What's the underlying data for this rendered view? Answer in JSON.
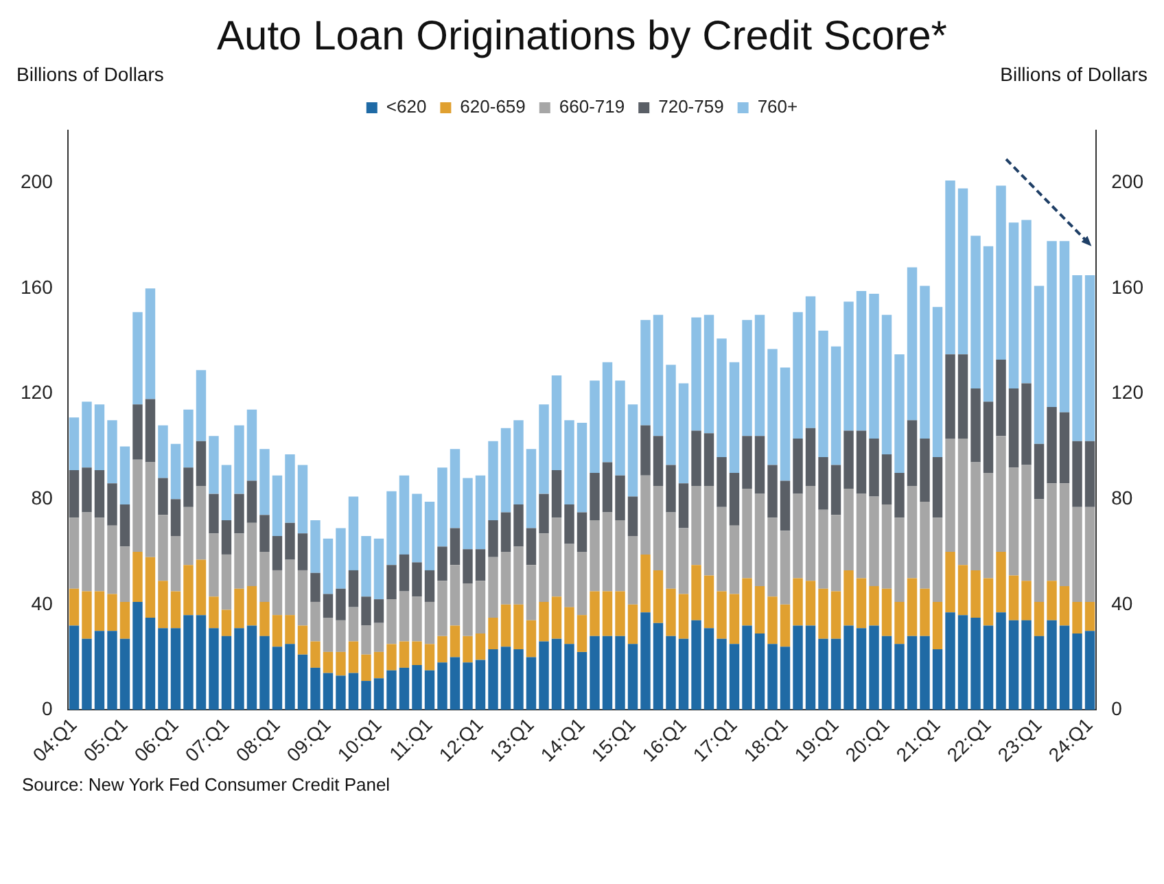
{
  "chart_data": {
    "type": "bar",
    "title": "Auto Loan Originations by Credit Score*",
    "ylabel": "Billions of Dollars",
    "y2label": "Billions of Dollars",
    "categories": [
      "04:Q1",
      null,
      null,
      null,
      "05:Q1",
      null,
      null,
      null,
      "06:Q1",
      null,
      null,
      null,
      "07:Q1",
      null,
      null,
      null,
      "08:Q1",
      null,
      null,
      null,
      "09:Q1",
      null,
      null,
      null,
      "10:Q1",
      null,
      null,
      null,
      "11:Q1",
      null,
      null,
      null,
      "12:Q1",
      null,
      null,
      null,
      "13:Q1",
      null,
      null,
      null,
      "14:Q1",
      null,
      null,
      null,
      "15:Q1",
      null,
      null,
      null,
      "16:Q1",
      null,
      null,
      null,
      "17:Q1",
      null,
      null,
      null,
      "18:Q1",
      null,
      null,
      null,
      "19:Q1",
      null,
      null,
      null,
      "20:Q1",
      null,
      null,
      null,
      "21:Q1",
      null,
      null,
      null,
      "22:Q1",
      null,
      null,
      null,
      "23:Q1",
      null,
      null,
      null,
      "24:Q1"
    ],
    "series": [
      {
        "name": "<620",
        "color": "#1f6aa5",
        "values": [
          32,
          27,
          30,
          30,
          27,
          41,
          35,
          31,
          31,
          36,
          36,
          31,
          28,
          31,
          32,
          28,
          24,
          25,
          21,
          16,
          14,
          13,
          14,
          11,
          12,
          15,
          16,
          17,
          15,
          18,
          20,
          18,
          19,
          23,
          24,
          23,
          20,
          26,
          27,
          25,
          22,
          28,
          28,
          28,
          25,
          37,
          33,
          28,
          27,
          34,
          31,
          27,
          25,
          32,
          29,
          25,
          24,
          32,
          32,
          27,
          27,
          32,
          31,
          32,
          28,
          25,
          28,
          28,
          23,
          37,
          36,
          35,
          32,
          37,
          34,
          34,
          28,
          34,
          32,
          29,
          30
        ]
      },
      {
        "name": "620-659",
        "color": "#e0a030",
        "values": [
          14,
          18,
          15,
          14,
          14,
          19,
          23,
          18,
          14,
          19,
          21,
          12,
          10,
          15,
          15,
          13,
          12,
          11,
          11,
          10,
          8,
          9,
          12,
          10,
          10,
          10,
          10,
          9,
          10,
          10,
          12,
          10,
          10,
          12,
          16,
          17,
          14,
          15,
          16,
          14,
          14,
          17,
          17,
          17,
          15,
          22,
          20,
          18,
          17,
          21,
          20,
          18,
          19,
          18,
          18,
          18,
          16,
          18,
          17,
          19,
          18,
          21,
          19,
          15,
          18,
          16,
          22,
          18,
          18,
          23,
          19,
          18,
          18,
          23,
          17,
          15,
          13,
          15,
          15,
          12,
          11
        ]
      },
      {
        "name": "660-719",
        "color": "#a6a6a6",
        "values": [
          27,
          30,
          28,
          26,
          21,
          35,
          36,
          25,
          21,
          22,
          28,
          24,
          21,
          21,
          24,
          19,
          17,
          21,
          21,
          15,
          13,
          12,
          13,
          11,
          11,
          17,
          19,
          17,
          16,
          21,
          23,
          20,
          20,
          23,
          20,
          22,
          21,
          26,
          30,
          24,
          24,
          27,
          30,
          27,
          26,
          30,
          32,
          29,
          25,
          30,
          34,
          32,
          26,
          34,
          35,
          30,
          28,
          32,
          36,
          30,
          29,
          31,
          32,
          34,
          32,
          32,
          35,
          33,
          32,
          43,
          48,
          41,
          40,
          44,
          41,
          44,
          39,
          37,
          39,
          36,
          36
        ]
      },
      {
        "name": "720-759",
        "color": "#5a5f66",
        "values": [
          18,
          17,
          18,
          16,
          16,
          21,
          24,
          14,
          14,
          15,
          17,
          15,
          13,
          15,
          16,
          14,
          13,
          14,
          14,
          11,
          9,
          12,
          14,
          11,
          9,
          13,
          14,
          13,
          12,
          13,
          14,
          13,
          12,
          14,
          15,
          16,
          14,
          15,
          18,
          15,
          15,
          18,
          19,
          17,
          15,
          19,
          19,
          18,
          17,
          21,
          20,
          19,
          20,
          20,
          22,
          20,
          19,
          21,
          22,
          20,
          19,
          22,
          24,
          22,
          19,
          17,
          25,
          24,
          23,
          32,
          32,
          28,
          27,
          29,
          30,
          31,
          21,
          29,
          27,
          25,
          25
        ]
      },
      {
        "name": "760+",
        "color": "#8cc0e6",
        "values": [
          20,
          25,
          25,
          24,
          22,
          35,
          42,
          20,
          21,
          22,
          27,
          22,
          21,
          26,
          27,
          25,
          23,
          26,
          26,
          20,
          21,
          23,
          28,
          23,
          23,
          28,
          30,
          26,
          26,
          30,
          30,
          27,
          28,
          30,
          32,
          32,
          30,
          34,
          36,
          32,
          34,
          35,
          38,
          36,
          35,
          40,
          46,
          38,
          38,
          43,
          45,
          45,
          42,
          44,
          46,
          44,
          43,
          48,
          50,
          48,
          45,
          49,
          53,
          55,
          53,
          45,
          58,
          58,
          57,
          66,
          63,
          58,
          59,
          66,
          63,
          62,
          60,
          63,
          65,
          63,
          63
        ]
      }
    ],
    "stacked": true,
    "ylim": [
      0,
      220
    ],
    "yticks": [
      0,
      40,
      80,
      120,
      160,
      200
    ],
    "y2lim": [
      0,
      220
    ],
    "y2ticks": [
      0,
      40,
      80,
      120,
      160,
      200
    ],
    "grid": false,
    "legend": "top",
    "annotations": [
      "Source: New York Fed Consumer Credit Panel"
    ]
  }
}
